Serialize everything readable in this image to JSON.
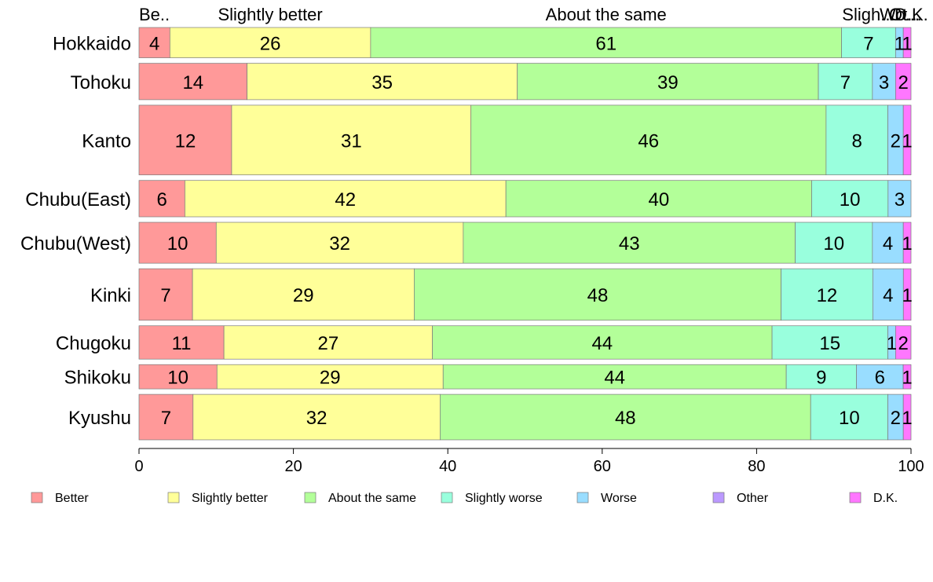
{
  "chart_data": {
    "type": "bar",
    "orientation": "horizontal",
    "stacked": true,
    "categories": [
      "Hokkaido",
      "Tohoku",
      "Kanto",
      "Chubu(East)",
      "Chubu(West)",
      "Kinki",
      "Chugoku",
      "Shikoku",
      "Kyushu"
    ],
    "series": [
      {
        "name": "Better",
        "color": "#ff9999",
        "values": [
          4,
          14,
          12,
          6,
          10,
          7,
          11,
          10,
          7
        ],
        "labels": [
          "4",
          "14",
          "12",
          "6",
          "10",
          "7",
          "11",
          "10",
          "7"
        ]
      },
      {
        "name": "Slightly better",
        "color": "#ffff99",
        "values": [
          26,
          35,
          31,
          42,
          32,
          29,
          27,
          29,
          32
        ],
        "labels": [
          "26",
          "35",
          "31",
          "42",
          "32",
          "29",
          "27",
          "29",
          "32"
        ]
      },
      {
        "name": "About the same",
        "color": "#b3ff99",
        "values": [
          61,
          39,
          46,
          40,
          43,
          48,
          44,
          44,
          48
        ],
        "labels": [
          "61",
          "39",
          "46",
          "40",
          "43",
          "48",
          "44",
          "44",
          "48"
        ]
      },
      {
        "name": "Slightly worse",
        "color": "#99ffdd",
        "values": [
          7,
          7,
          8,
          10,
          10,
          12,
          15,
          9,
          10
        ],
        "labels": [
          "7",
          "7",
          "8",
          "10",
          "10",
          "12",
          "15",
          "9",
          "10"
        ]
      },
      {
        "name": "Worse",
        "color": "#99ddff",
        "values": [
          1,
          3,
          2,
          3,
          4,
          4,
          1,
          6,
          2
        ],
        "labels": [
          "1",
          "3",
          "2",
          "3",
          "4",
          "4",
          "1",
          "6",
          "2"
        ]
      },
      {
        "name": "Other",
        "color": "#bb99ff",
        "values": [
          0,
          0,
          0,
          0,
          0,
          0,
          0,
          0,
          0
        ],
        "labels": [
          "",
          "",
          "",
          "",
          "",
          "",
          "",
          "",
          ""
        ]
      },
      {
        "name": "D.K.",
        "color": "#ff77ff",
        "values": [
          1,
          2,
          1,
          0,
          1,
          1,
          2,
          1,
          1
        ],
        "labels": [
          "1",
          "2",
          "1",
          "",
          "1",
          "1",
          "2",
          "1",
          "1"
        ]
      }
    ],
    "relative_heights": [
      1,
      1.2,
      2.3,
      1.2,
      1.35,
      1.7,
      1.1,
      0.8,
      1.5
    ],
    "top_labels": [
      "Be..",
      "Slightly better",
      "About the same",
      "Sligh...",
      "Wo...",
      "Ot...",
      "D.K."
    ],
    "xlim": [
      0,
      100
    ],
    "xticks": [
      "0",
      "20",
      "40",
      "60",
      "80",
      "100"
    ],
    "grid": false,
    "legend": {
      "position": "bottom",
      "entries": [
        "Better",
        "Slightly better",
        "About the same",
        "Slightly worse",
        "Worse",
        "Other",
        "D.K."
      ]
    }
  }
}
